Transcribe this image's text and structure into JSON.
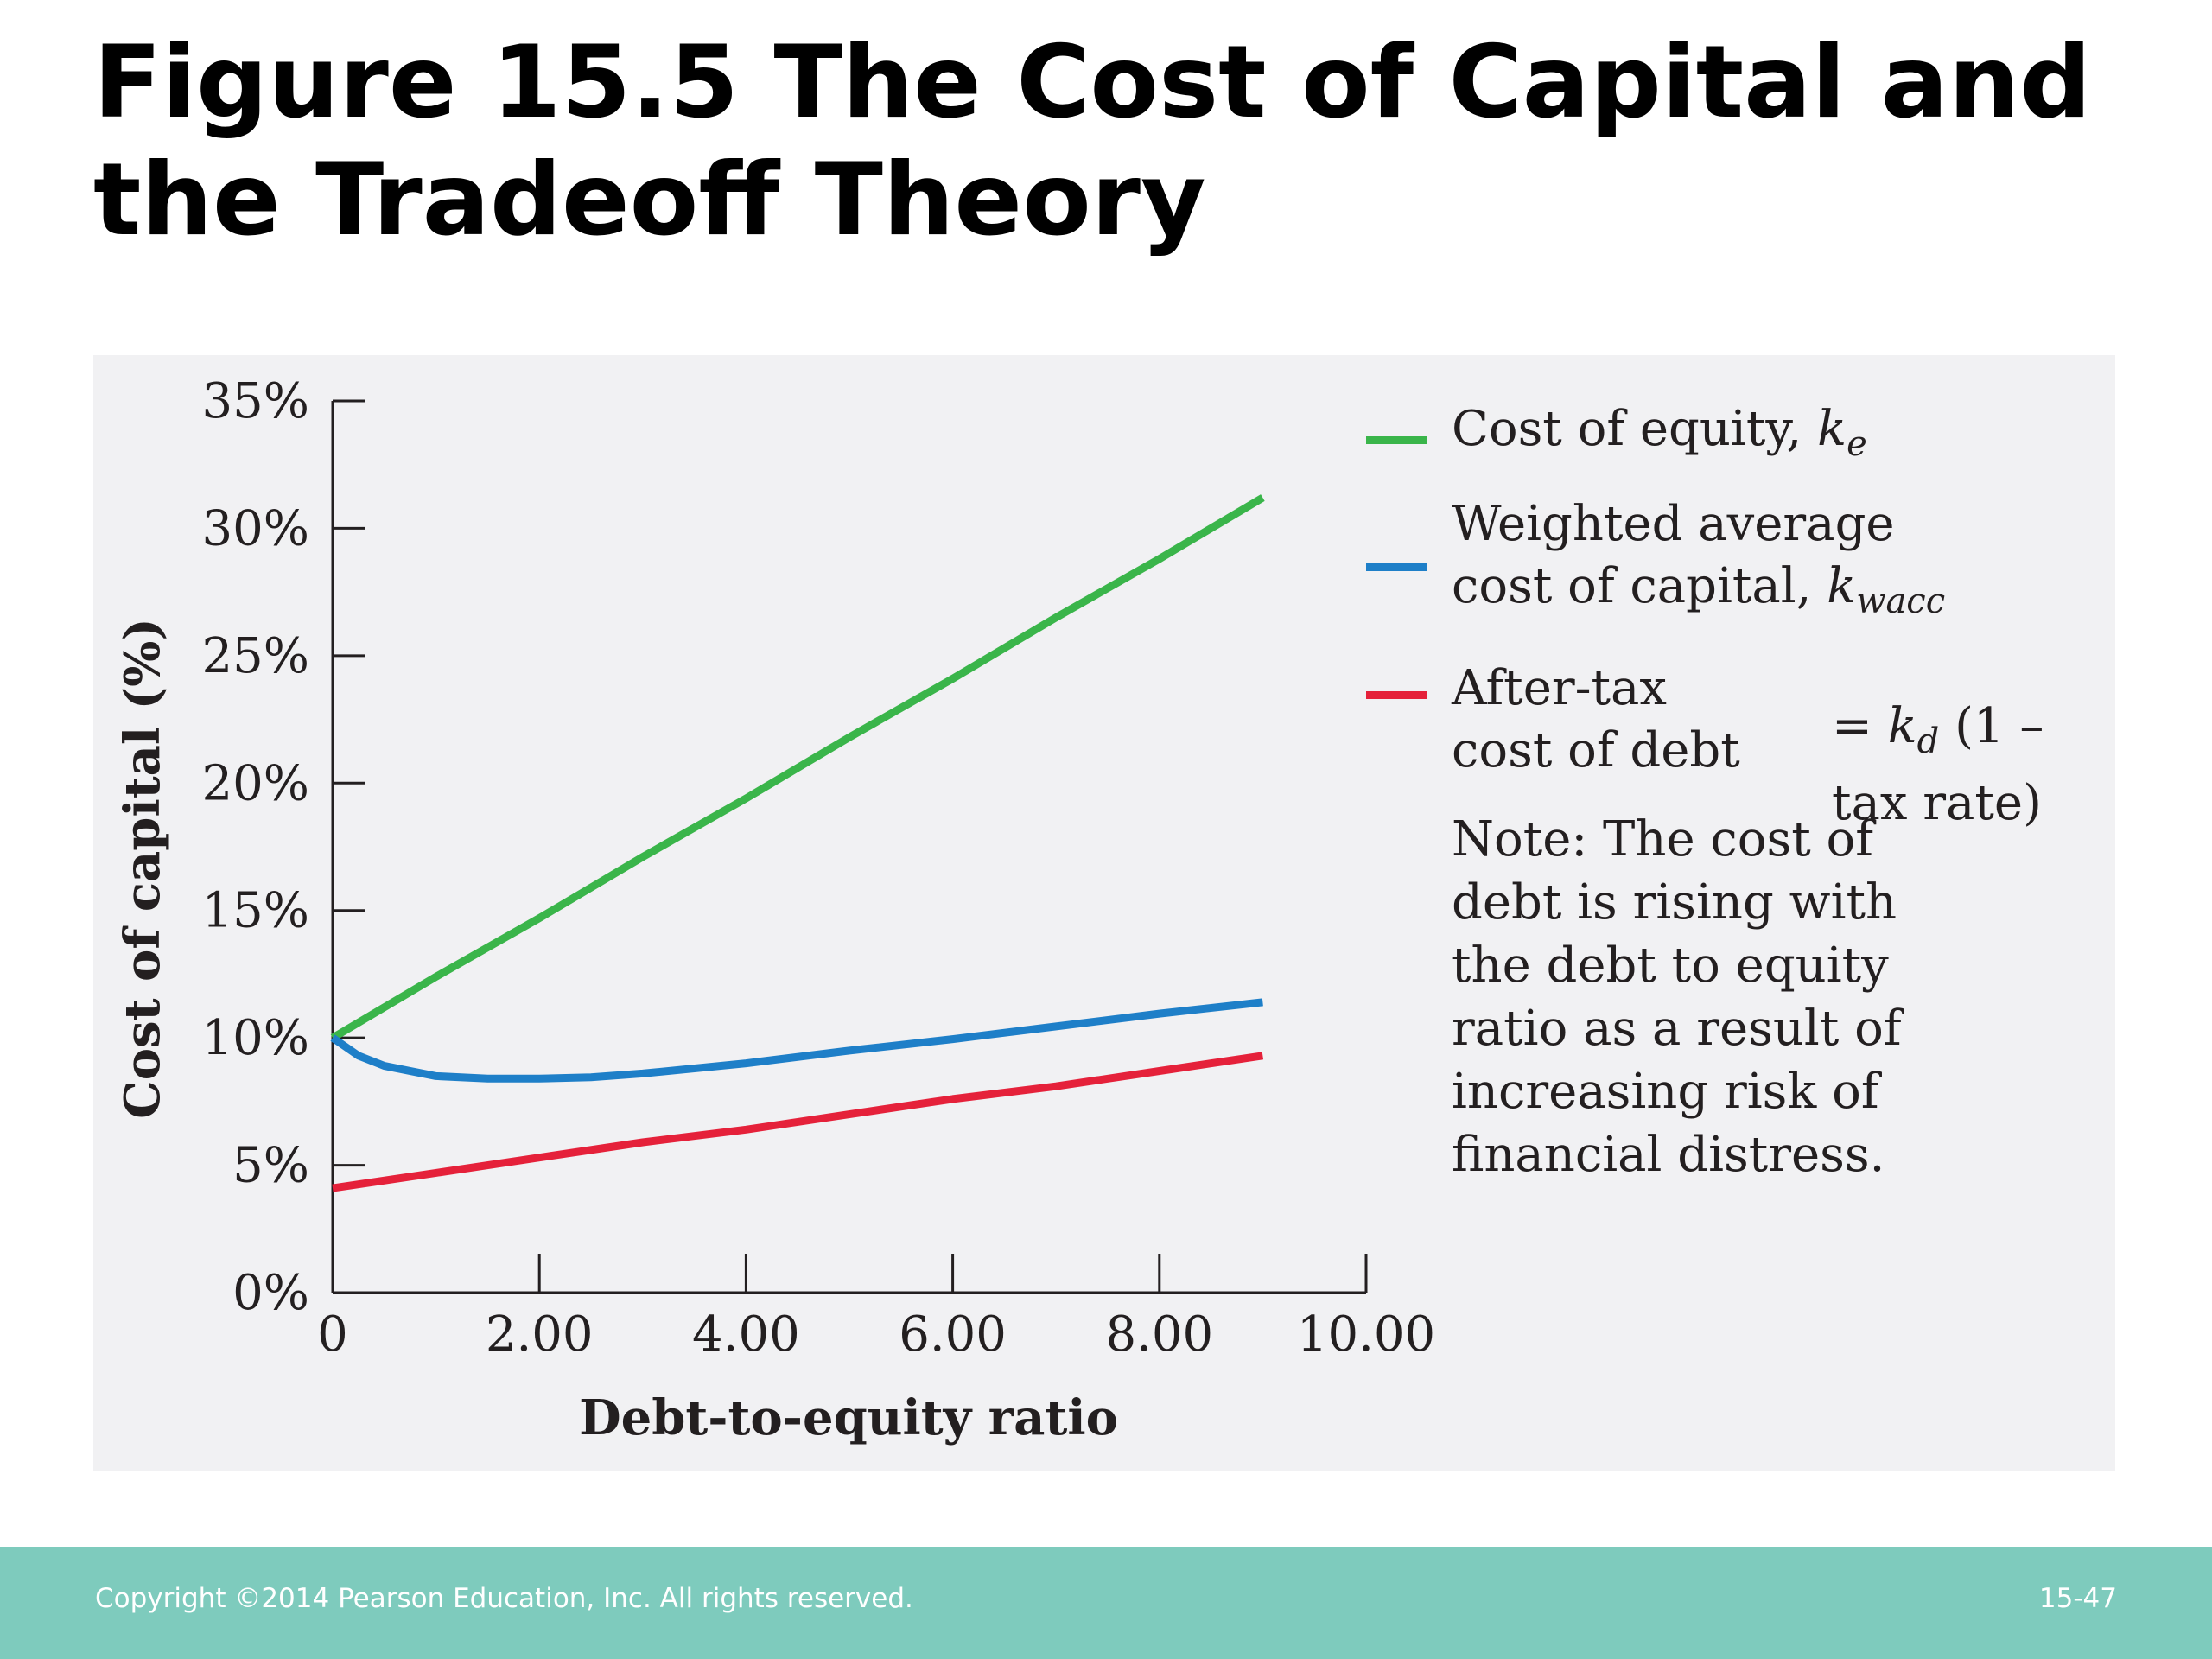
{
  "slide": {
    "title": "Figure 15.5  The Cost of Capital and\nthe Tradeoff Theory",
    "footer": {
      "copyright": "Copyright ©2014 Pearson Education, Inc. All rights reserved.",
      "page": "15-47"
    },
    "footer_color": "#7ecbbd"
  },
  "chart_data": {
    "type": "line",
    "title": "",
    "xlabel": "Debt-to-equity ratio",
    "ylabel": "Cost of capital (%)",
    "xlim": [
      0,
      10
    ],
    "ylim": [
      0,
      35
    ],
    "x_ticks": [
      0,
      2,
      4,
      6,
      8,
      10
    ],
    "x_tick_labels": [
      "0",
      "2.00",
      "4.00",
      "6.00",
      "8.00",
      "10.00"
    ],
    "y_ticks": [
      0,
      5,
      10,
      15,
      20,
      25,
      30,
      35
    ],
    "y_tick_labels": [
      "0%",
      "5%",
      "10%",
      "15%",
      "20%",
      "25%",
      "30%",
      "35%"
    ],
    "grid": false,
    "legend_position": "right",
    "series": [
      {
        "name": "Cost of equity, ke",
        "label": "Cost of equity, ",
        "symbol": "k",
        "subscript": "e",
        "color": "#3ab54a",
        "x": [
          0,
          1,
          2,
          3,
          4,
          5,
          6,
          7,
          8,
          9
        ],
        "values": [
          10.0,
          12.4,
          14.7,
          17.1,
          19.4,
          21.8,
          24.1,
          26.5,
          28.8,
          31.2
        ]
      },
      {
        "name": "Weighted average cost of capital, kwacc",
        "label": "Weighted average\ncost of capital, ",
        "symbol": "k",
        "subscript": "wacc",
        "color": "#1e7fc8",
        "x": [
          0,
          0.25,
          0.5,
          1,
          1.5,
          2,
          2.5,
          3,
          4,
          5,
          6,
          7,
          8,
          9
        ],
        "values": [
          10.0,
          9.3,
          8.9,
          8.5,
          8.4,
          8.4,
          8.45,
          8.6,
          9.0,
          9.5,
          9.95,
          10.45,
          10.95,
          11.4
        ]
      },
      {
        "name": "After-tax cost of debt = kd (1 – tax rate)",
        "label": "After-tax\ncost of debt",
        "formula_prefix": "= ",
        "symbol": "k",
        "subscript": "d",
        "formula_suffix": " (1 – tax rate)",
        "color": "#e5213a",
        "x": [
          0,
          1,
          2,
          3,
          4,
          5,
          6,
          7,
          8,
          9
        ],
        "values": [
          4.1,
          4.7,
          5.3,
          5.9,
          6.4,
          7.0,
          7.6,
          8.1,
          8.7,
          9.3
        ]
      }
    ],
    "note": "Note:  The cost of debt is rising with the debt to equity ratio as a result of increasing risk of financial distress."
  }
}
